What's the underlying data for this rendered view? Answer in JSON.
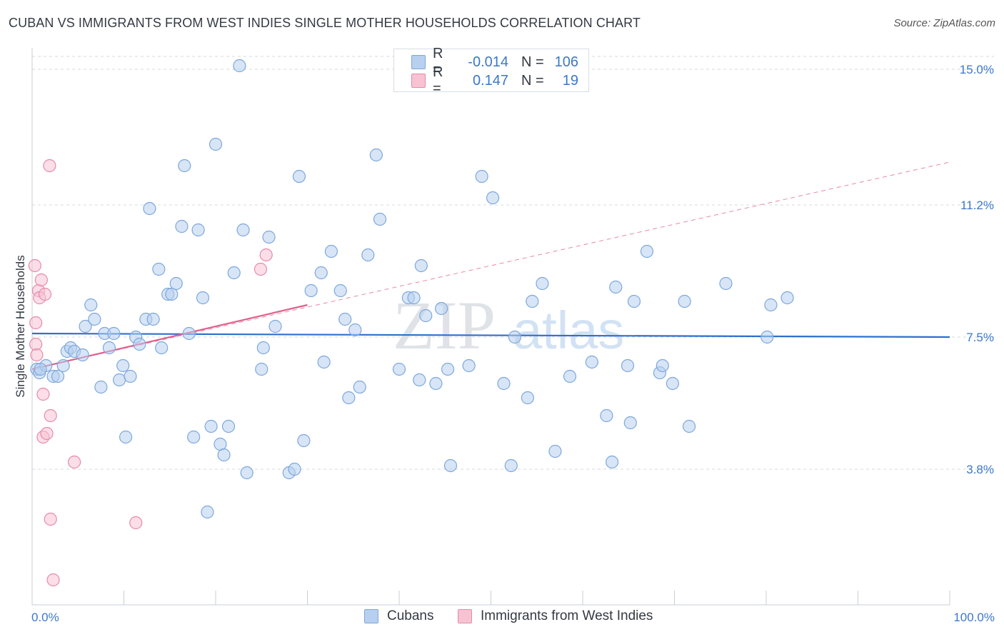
{
  "header": {
    "title": "CUBAN VS IMMIGRANTS FROM WEST INDIES SINGLE MOTHER HOUSEHOLDS CORRELATION CHART",
    "source": "Source: ZipAtlas.com"
  },
  "watermark": {
    "zip": "ZIP",
    "atlas": "atlas"
  },
  "legend_top": {
    "rows": [
      {
        "r_label": "R =",
        "r_value": "-0.014",
        "n_label": "N =",
        "n_value": "106"
      },
      {
        "r_label": "R =",
        "r_value": "0.147",
        "n_label": "N =",
        "n_value": "19"
      }
    ]
  },
  "legend_bottom": {
    "items": [
      {
        "label": "Cubans"
      },
      {
        "label": "Immigrants from West Indies"
      }
    ]
  },
  "colors": {
    "blue_fill": "#b7d0ef",
    "blue_stroke": "#7da7dc",
    "blue_line": "#2e6fcf",
    "pink_fill": "#f7c3d3",
    "pink_stroke": "#e68aa8",
    "pink_line": "#e0608d",
    "grid": "#d5d9df",
    "tick_text": "#3b78c9"
  },
  "chart_data": {
    "type": "scatter",
    "title": "CUBAN VS IMMIGRANTS FROM WEST INDIES SINGLE MOTHER HOUSEHOLDS CORRELATION CHART",
    "xlabel": "",
    "ylabel": "Single Mother Households",
    "xlim": [
      0,
      100
    ],
    "ylim": [
      0,
      16.5
    ],
    "x_tick_labels": [
      "0.0%",
      "100.0%"
    ],
    "y_ticks": [
      3.8,
      7.5,
      11.2,
      15.0
    ],
    "y_tick_labels": [
      "3.8%",
      "7.5%",
      "11.2%",
      "15.0%"
    ],
    "grid": "horizontal dashed",
    "legend_position": "top-center",
    "series": [
      {
        "name": "Cubans",
        "r": -0.014,
        "n": 106,
        "trend": {
          "x": [
            0,
            100
          ],
          "y": [
            7.6,
            7.5
          ]
        },
        "points": [
          [
            0.5,
            6.6
          ],
          [
            0.8,
            6.5
          ],
          [
            1.5,
            6.7
          ],
          [
            2.3,
            6.4
          ],
          [
            2.8,
            6.4
          ],
          [
            3.4,
            6.7
          ],
          [
            3.8,
            7.1
          ],
          [
            4.2,
            7.2
          ],
          [
            4.6,
            7.1
          ],
          [
            5.5,
            7.0
          ],
          [
            5.8,
            7.8
          ],
          [
            6.4,
            8.4
          ],
          [
            6.8,
            8.0
          ],
          [
            7.5,
            6.1
          ],
          [
            7.9,
            7.6
          ],
          [
            8.4,
            7.2
          ],
          [
            8.9,
            7.6
          ],
          [
            9.5,
            6.3
          ],
          [
            9.9,
            6.7
          ],
          [
            10.2,
            4.7
          ],
          [
            10.7,
            6.4
          ],
          [
            11.3,
            7.5
          ],
          [
            11.7,
            7.3
          ],
          [
            12.4,
            8.0
          ],
          [
            12.8,
            11.1
          ],
          [
            13.2,
            8.0
          ],
          [
            13.8,
            9.4
          ],
          [
            14.1,
            7.2
          ],
          [
            14.8,
            8.7
          ],
          [
            15.2,
            8.7
          ],
          [
            15.7,
            9.0
          ],
          [
            16.3,
            10.6
          ],
          [
            16.6,
            12.3
          ],
          [
            17.1,
            7.6
          ],
          [
            17.6,
            4.7
          ],
          [
            18.1,
            10.5
          ],
          [
            18.6,
            8.6
          ],
          [
            19.1,
            2.6
          ],
          [
            19.5,
            5.0
          ],
          [
            20.0,
            12.9
          ],
          [
            20.5,
            4.5
          ],
          [
            20.9,
            4.2
          ],
          [
            21.4,
            5.0
          ],
          [
            22.0,
            9.3
          ],
          [
            22.6,
            15.1
          ],
          [
            23.0,
            10.5
          ],
          [
            23.4,
            3.7
          ],
          [
            25.0,
            6.6
          ],
          [
            25.2,
            7.2
          ],
          [
            25.8,
            10.3
          ],
          [
            26.5,
            7.8
          ],
          [
            28.0,
            3.7
          ],
          [
            28.6,
            3.8
          ],
          [
            29.1,
            12.0
          ],
          [
            29.6,
            4.6
          ],
          [
            30.4,
            8.8
          ],
          [
            31.5,
            9.3
          ],
          [
            31.8,
            6.8
          ],
          [
            32.6,
            9.9
          ],
          [
            33.6,
            8.8
          ],
          [
            34.1,
            8.0
          ],
          [
            34.5,
            5.8
          ],
          [
            35.2,
            7.7
          ],
          [
            35.7,
            6.1
          ],
          [
            36.6,
            9.8
          ],
          [
            37.5,
            12.6
          ],
          [
            37.9,
            10.8
          ],
          [
            40.0,
            6.6
          ],
          [
            41.0,
            8.6
          ],
          [
            41.6,
            8.6
          ],
          [
            42.2,
            6.3
          ],
          [
            42.4,
            9.5
          ],
          [
            42.9,
            8.1
          ],
          [
            44.0,
            6.2
          ],
          [
            44.6,
            8.3
          ],
          [
            45.3,
            6.6
          ],
          [
            45.6,
            3.9
          ],
          [
            47.6,
            6.7
          ],
          [
            49.0,
            12.0
          ],
          [
            50.2,
            11.4
          ],
          [
            51.4,
            6.2
          ],
          [
            52.2,
            3.9
          ],
          [
            52.6,
            7.5
          ],
          [
            54.0,
            5.8
          ],
          [
            54.5,
            8.5
          ],
          [
            55.6,
            9.0
          ],
          [
            57.0,
            4.3
          ],
          [
            58.6,
            6.4
          ],
          [
            61.0,
            6.8
          ],
          [
            62.6,
            5.3
          ],
          [
            63.2,
            4.0
          ],
          [
            63.6,
            8.9
          ],
          [
            64.9,
            6.7
          ],
          [
            65.2,
            5.1
          ],
          [
            65.6,
            8.5
          ],
          [
            67.0,
            9.9
          ],
          [
            68.4,
            6.5
          ],
          [
            68.7,
            6.7
          ],
          [
            69.8,
            6.2
          ],
          [
            71.1,
            8.5
          ],
          [
            71.6,
            5.0
          ],
          [
            75.6,
            9.0
          ],
          [
            80.1,
            7.5
          ],
          [
            80.5,
            8.4
          ],
          [
            82.3,
            8.6
          ],
          [
            0.9,
            6.6
          ]
        ]
      },
      {
        "name": "Immigrants from West Indies",
        "r": 0.147,
        "n": 19,
        "trend": {
          "x": [
            0,
            30
          ],
          "y": [
            6.6,
            8.4
          ]
        },
        "trend_extended": {
          "x": [
            0,
            100
          ],
          "y": [
            6.6,
            12.4
          ]
        },
        "points": [
          [
            0.3,
            9.5
          ],
          [
            0.4,
            7.9
          ],
          [
            0.4,
            7.3
          ],
          [
            0.5,
            7.0
          ],
          [
            0.7,
            8.8
          ],
          [
            0.8,
            8.6
          ],
          [
            1.0,
            9.1
          ],
          [
            1.2,
            5.9
          ],
          [
            1.2,
            4.7
          ],
          [
            1.4,
            8.7
          ],
          [
            1.6,
            4.8
          ],
          [
            1.9,
            12.3
          ],
          [
            2.0,
            5.3
          ],
          [
            2.0,
            2.4
          ],
          [
            2.3,
            0.7
          ],
          [
            4.6,
            4.0
          ],
          [
            11.3,
            2.3
          ],
          [
            24.9,
            9.4
          ],
          [
            25.5,
            9.8
          ]
        ]
      }
    ]
  }
}
